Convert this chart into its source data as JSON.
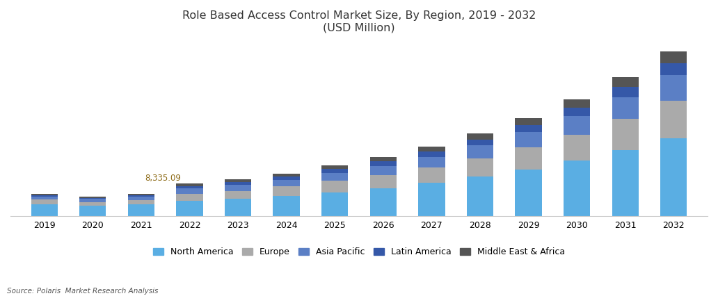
{
  "title_line1": "Role Based Access Control Market Size, By Region, 2019 - 2032",
  "title_line2": "(USD Million)",
  "source": "Source: Polaris  Market Research Analysis",
  "years": [
    2019,
    2020,
    2021,
    2022,
    2023,
    2024,
    2025,
    2026,
    2027,
    2028,
    2029,
    2030,
    2031,
    2032
  ],
  "annotation_year": 2022,
  "annotation_text": "8,335.09",
  "regions": [
    "North America",
    "Europe",
    "Asia Pacific",
    "Latin America",
    "Middle East & Africa"
  ],
  "colors": [
    "#5AAEE3",
    "#AAAAAA",
    "#5B7FC5",
    "#3558A8",
    "#555555"
  ],
  "data": {
    "North America": [
      3000,
      2600,
      2950,
      3900,
      4400,
      5200,
      6100,
      7200,
      8500,
      10100,
      12000,
      14200,
      16900,
      20000
    ],
    "Europe": [
      1200,
      1050,
      1200,
      1850,
      2100,
      2400,
      2900,
      3300,
      3900,
      4700,
      5600,
      6700,
      8000,
      9500
    ],
    "Asia Pacific": [
      850,
      740,
      860,
      1350,
      1550,
      1750,
      2100,
      2400,
      2800,
      3300,
      3900,
      4700,
      5600,
      6600
    ],
    "Latin America": [
      380,
      330,
      375,
      610,
      690,
      780,
      940,
      1100,
      1280,
      1520,
      1800,
      2150,
      2550,
      3000
    ],
    "Middle East & Africa": [
      280,
      250,
      275,
      625,
      710,
      810,
      970,
      1140,
      1320,
      1580,
      1870,
      2230,
      2650,
      3100
    ]
  },
  "ylim": [
    0,
    45000
  ],
  "bar_width": 0.55,
  "title_fontsize": 11.5,
  "tick_fontsize": 9,
  "legend_fontsize": 9,
  "annotation_fontsize": 8.5,
  "annotation_color": "#8B6914",
  "fig_bg": "#FFFFFF",
  "plot_bg": "#FFFFFF",
  "border_color": "#CCCCCC"
}
